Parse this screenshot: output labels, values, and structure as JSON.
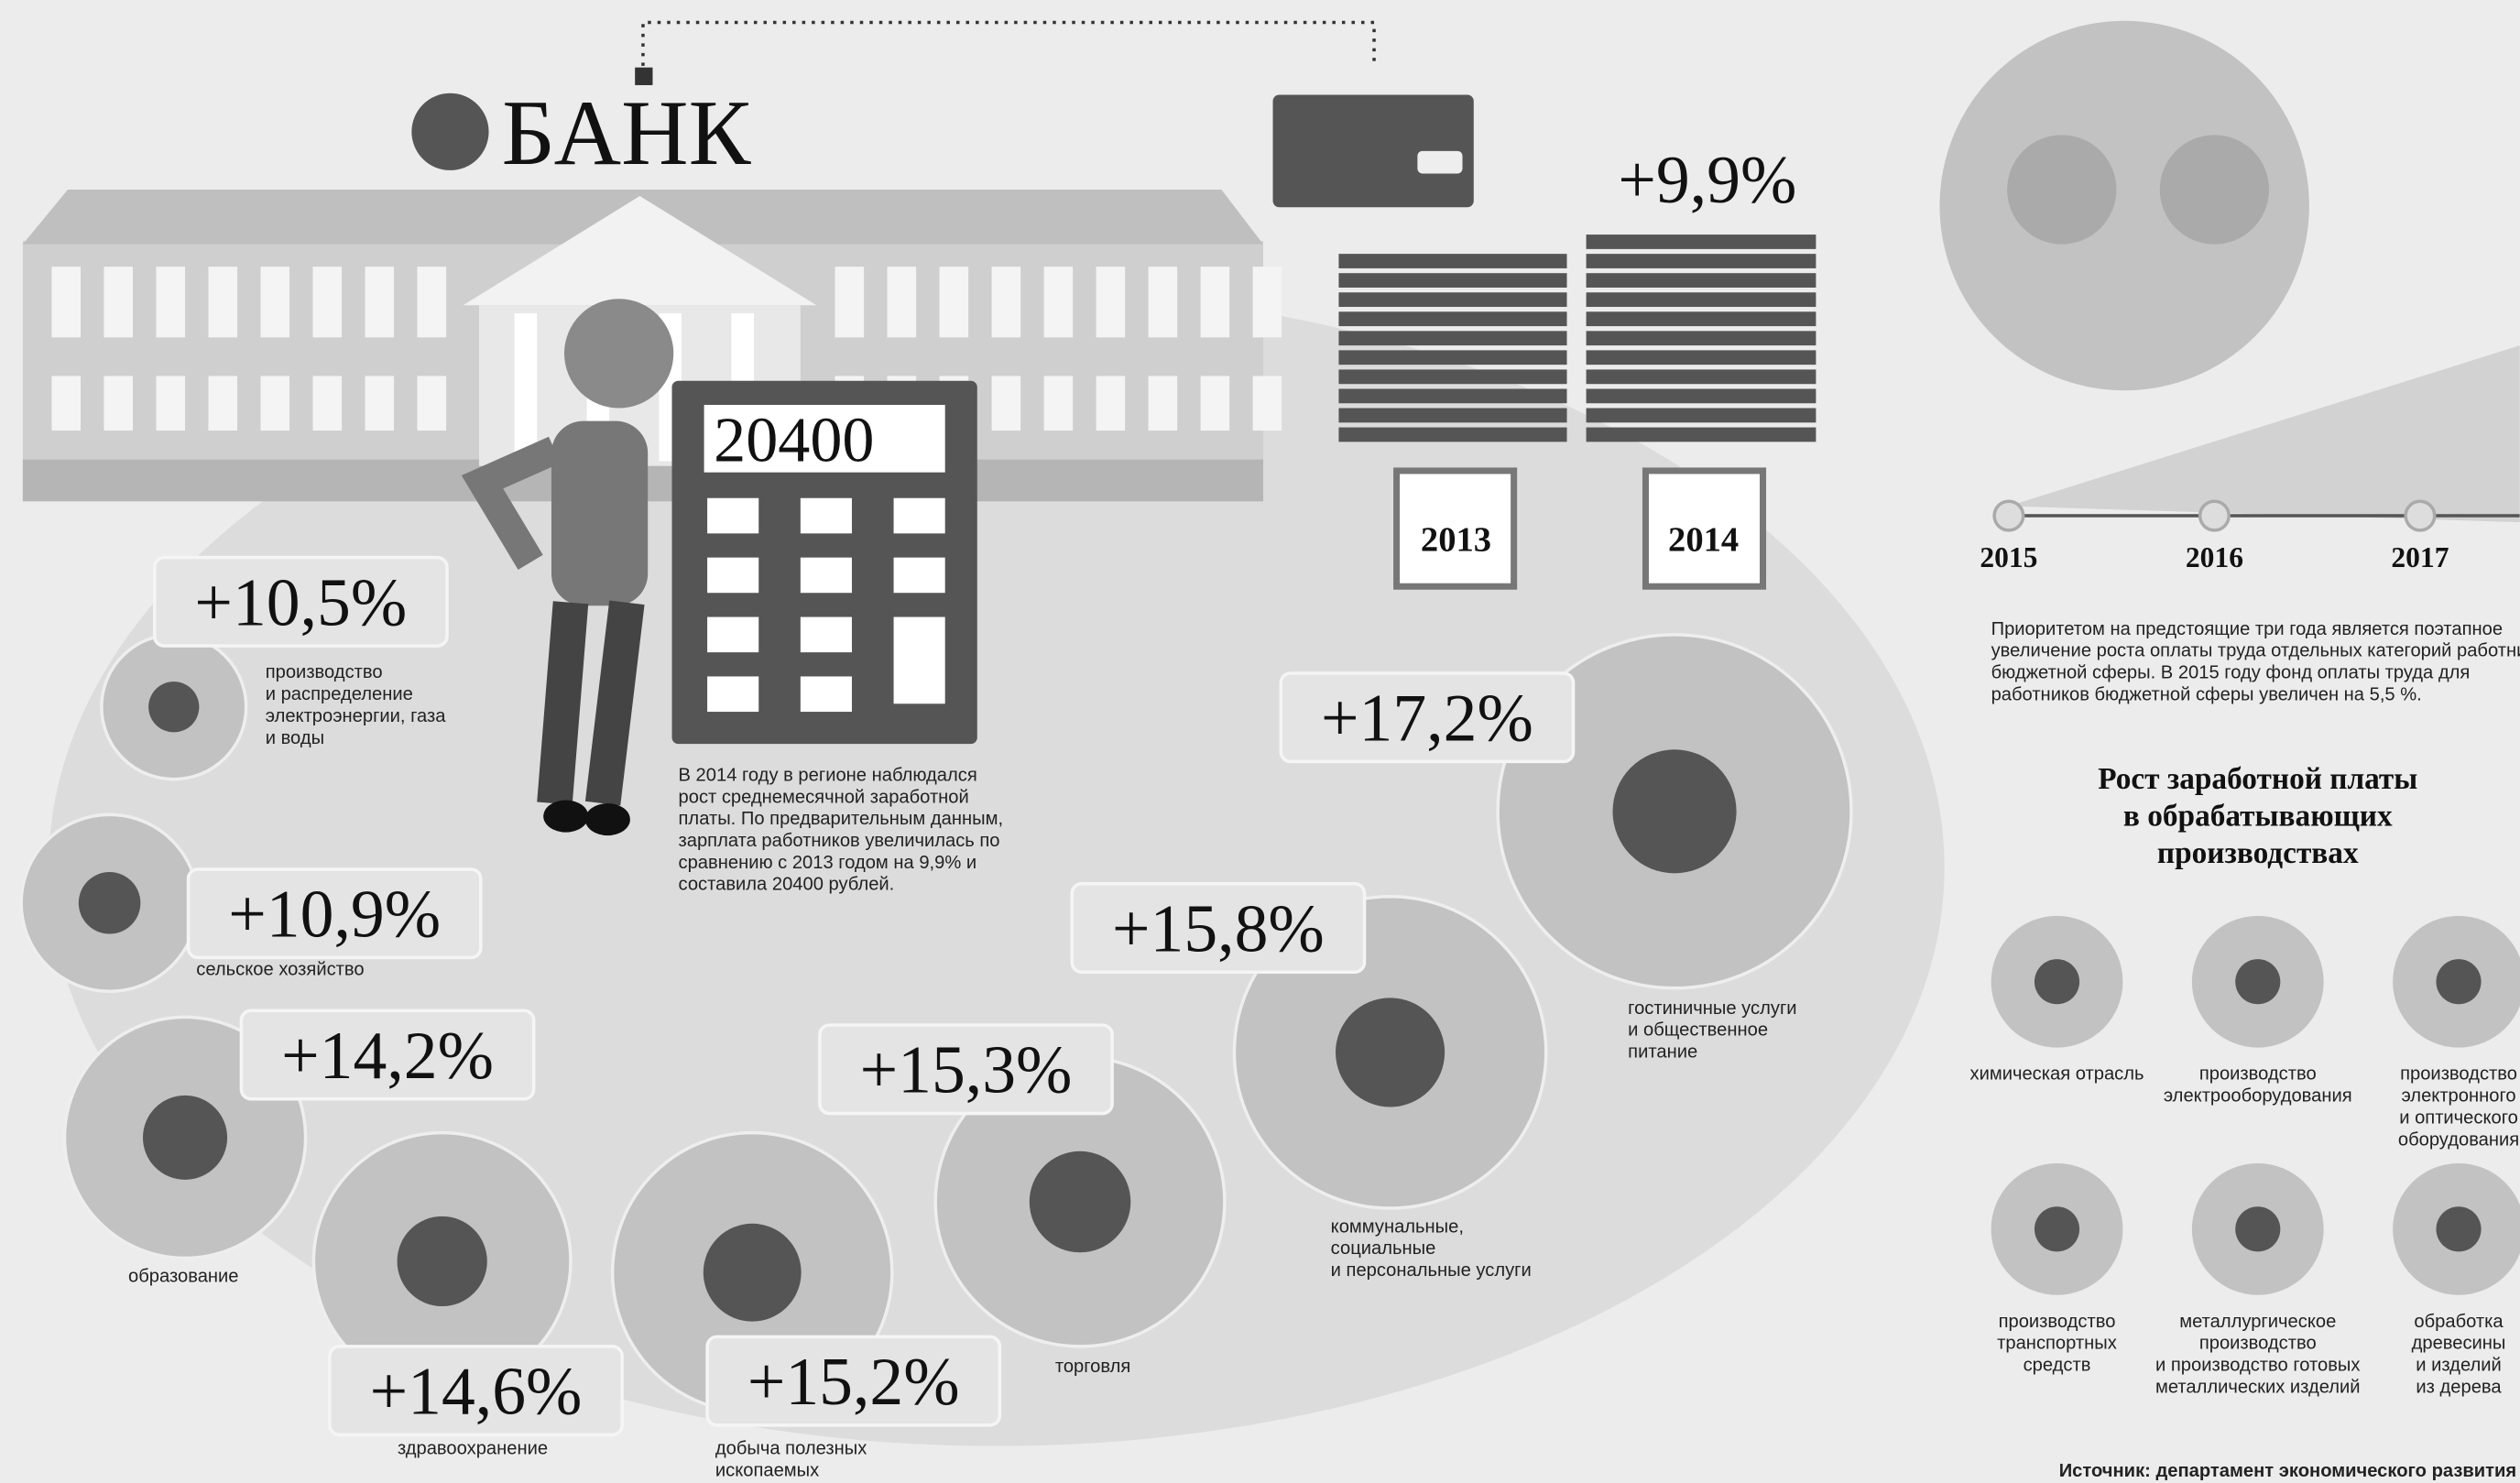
{
  "bank": {
    "name": "БАНК",
    "salary": "20400",
    "years": [
      "2013",
      "2014"
    ],
    "growth": "+9,9%",
    "text": [
      "В 2014 году в регионе наблюдался",
      "рост среднемесячной заработной",
      "платы. По предварительным данным,",
      "зарплата работников увеличилась по",
      "сравнению с 2013 годом на 9,9% и",
      "составила 20400 рублей."
    ]
  },
  "sectors": [
    {
      "percent": "+10,5%",
      "label": [
        "производство",
        "и распределение",
        "электроэнергии, газа",
        "и воды"
      ]
    },
    {
      "percent": "+10,9%",
      "label": [
        "сельское хозяйство"
      ]
    },
    {
      "percent": "+14,2%",
      "label": [
        "образование"
      ]
    },
    {
      "percent": "+14,6%",
      "label": [
        "здравоохранение"
      ]
    },
    {
      "percent": "+15,2%",
      "label": [
        "добыча полезных",
        "ископаемых"
      ]
    },
    {
      "percent": "+15,3%",
      "label": [
        "торговля"
      ]
    },
    {
      "percent": "+15,8%",
      "label": [
        "коммунальные,",
        "социальные",
        "и персональные услуги"
      ]
    },
    {
      "percent": "+17,2%",
      "label": [
        "гостиничные услуги",
        "и общественное",
        "питание"
      ]
    }
  ],
  "plan": {
    "years": [
      "2015",
      "2016",
      "2017"
    ],
    "text": [
      "Приоритетом на предстоящие три года является поэтапное",
      "увеличение роста оплаты труда отдельных категорий работников",
      "бюджетной сферы. В 2015 году фонд оплаты труда для",
      "работников бюджетной сферы увеличен на 5,5 %."
    ]
  },
  "manufacturing": {
    "title": [
      "Рост заработной платы",
      "в обрабатывающих",
      "производствах"
    ],
    "items": [
      {
        "label": [
          "химическая отрасль"
        ]
      },
      {
        "label": [
          "производство",
          "электрооборудования"
        ]
      },
      {
        "label": [
          "производство",
          "электронного",
          "и оптического",
          "оборудования"
        ]
      },
      {
        "label": [
          "производство",
          "транспортных",
          "средств"
        ]
      },
      {
        "label": [
          "металлургическое",
          "производство",
          "и производство готовых",
          "металлических изделий"
        ]
      },
      {
        "label": [
          "обработка",
          "древесины",
          "и изделий",
          "из дерева"
        ]
      }
    ]
  },
  "source": "Источник: департамент экономического развития"
}
